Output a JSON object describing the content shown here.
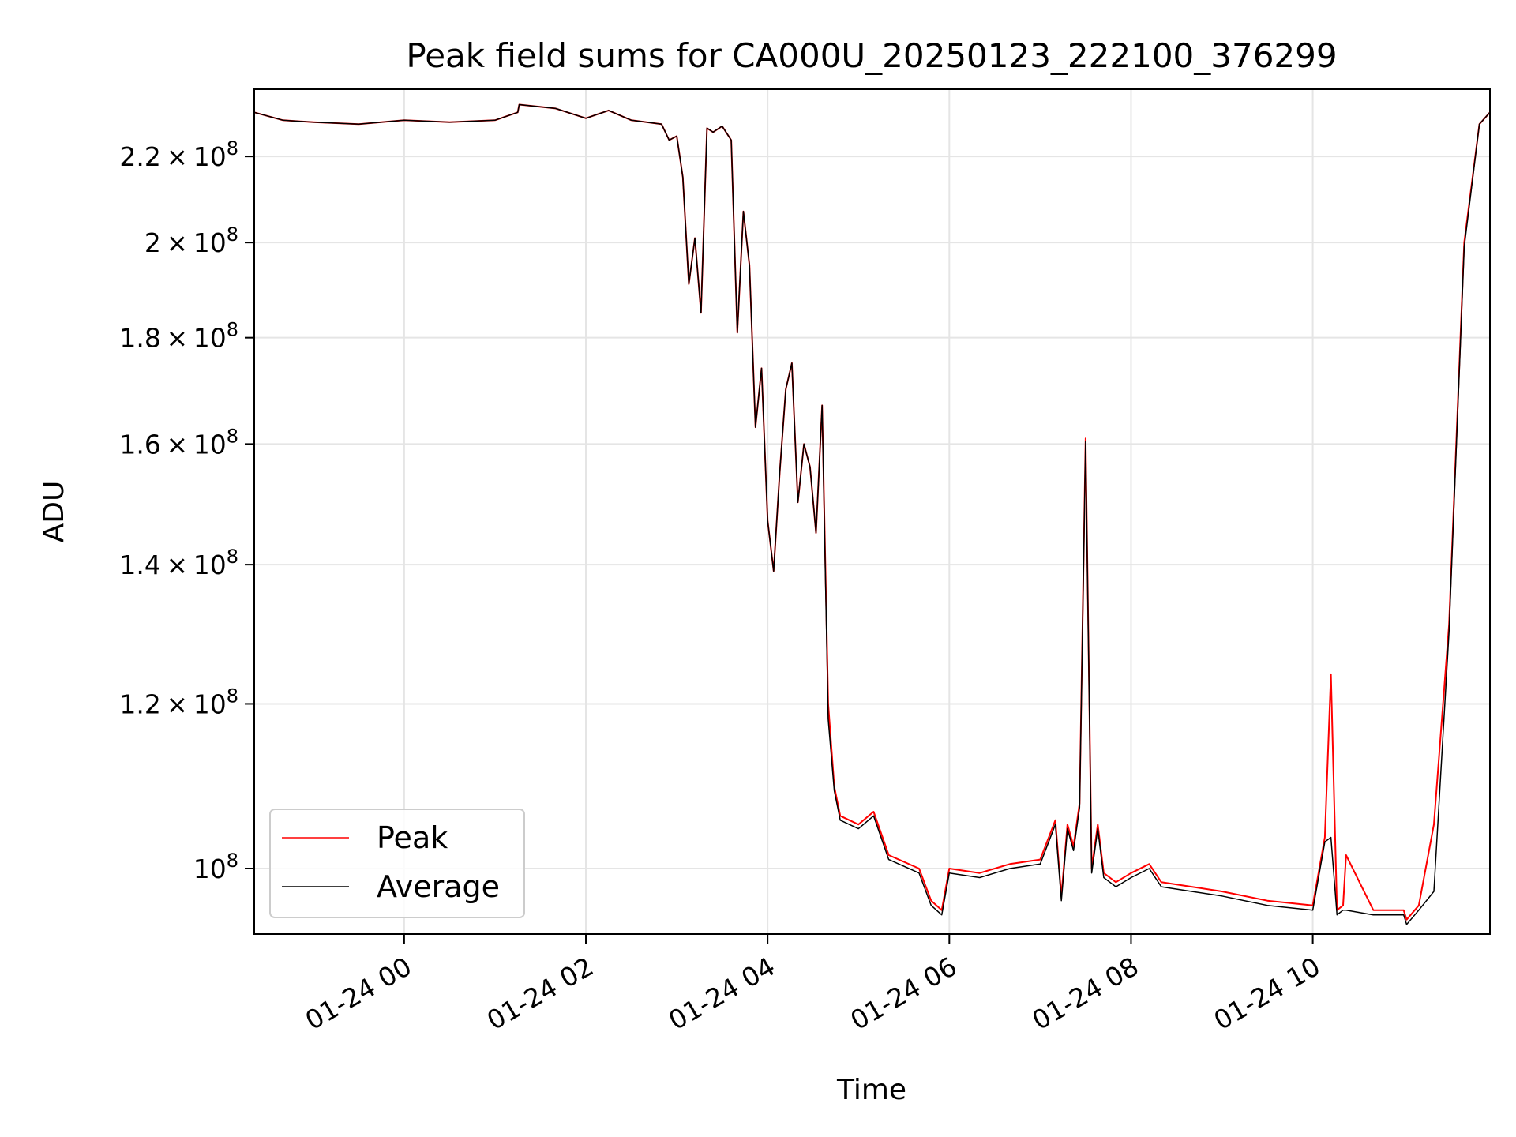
{
  "chart_data": {
    "type": "line",
    "title": "Peak field sums for CA000U_20250123_222100_376299",
    "xlabel": "Time",
    "ylabel": "ADU",
    "yscale": "log",
    "ylim": [
      93000000,
      237000000
    ],
    "xlim": [
      "01-23 22:21",
      "01-24 11:57"
    ],
    "grid": true,
    "legend_position": "lower-left",
    "x_ticks": [
      "01-24 00",
      "01-24 02",
      "01-24 04",
      "01-24 06",
      "01-24 08",
      "01-24 10"
    ],
    "x_tick_values": [
      "01-24 00:00",
      "01-24 02:00",
      "01-24 04:00",
      "01-24 06:00",
      "01-24 08:00",
      "01-24 10:00"
    ],
    "y_ticks": [
      {
        "value": 100000000,
        "mantissa": "",
        "exp": "8"
      },
      {
        "value": 120000000,
        "mantissa": "1.2",
        "exp": "8"
      },
      {
        "value": 140000000,
        "mantissa": "1.4",
        "exp": "8"
      },
      {
        "value": 160000000,
        "mantissa": "1.6",
        "exp": "8"
      },
      {
        "value": 180000000,
        "mantissa": "1.8",
        "exp": "8"
      },
      {
        "value": 200000000,
        "mantissa": "2",
        "exp": "8"
      },
      {
        "value": 220000000,
        "mantissa": "2.2",
        "exp": "8"
      }
    ],
    "series": [
      {
        "name": "Peak",
        "color": "#ff0000",
        "x": [
          "01-23 22:21",
          "01-23 22:40",
          "01-23 23:00",
          "01-23 23:30",
          "01-24 00:00",
          "01-24 00:30",
          "01-24 01:00",
          "01-24 01:15",
          "01-24 01:16",
          "01-24 01:40",
          "01-24 02:00",
          "01-24 02:15",
          "01-24 02:30",
          "01-24 02:50",
          "01-24 02:55",
          "01-24 03:00",
          "01-24 03:04",
          "01-24 03:08",
          "01-24 03:12",
          "01-24 03:16",
          "01-24 03:20",
          "01-24 03:24",
          "01-24 03:30",
          "01-24 03:36",
          "01-24 03:40",
          "01-24 03:44",
          "01-24 03:48",
          "01-24 03:52",
          "01-24 03:56",
          "01-24 04:00",
          "01-24 04:04",
          "01-24 04:08",
          "01-24 04:12",
          "01-24 04:16",
          "01-24 04:20",
          "01-24 04:24",
          "01-24 04:28",
          "01-24 04:32",
          "01-24 04:36",
          "01-24 04:40",
          "01-24 04:44",
          "01-24 04:48",
          "01-24 05:00",
          "01-24 05:10",
          "01-24 05:20",
          "01-24 05:40",
          "01-24 05:48",
          "01-24 05:55",
          "01-24 06:00",
          "01-24 06:20",
          "01-24 06:40",
          "01-24 07:00",
          "01-24 07:10",
          "01-24 07:14",
          "01-24 07:18",
          "01-24 07:22",
          "01-24 07:26",
          "01-24 07:30",
          "01-24 07:34",
          "01-24 07:38",
          "01-24 07:42",
          "01-24 07:46",
          "01-24 07:50",
          "01-24 08:00",
          "01-24 08:12",
          "01-24 08:20",
          "01-24 08:40",
          "01-24 09:00",
          "01-24 09:30",
          "01-24 10:00",
          "01-24 10:08",
          "01-24 10:12",
          "01-24 10:16",
          "01-24 10:20",
          "01-24 10:22",
          "01-24 10:40",
          "01-24 11:00",
          "01-24 11:02",
          "01-24 11:10",
          "01-24 11:20",
          "01-24 11:30",
          "01-24 11:40",
          "01-24 11:50",
          "01-24 11:57"
        ],
        "values": [
          231000000,
          229000000,
          228500000,
          228000000,
          229000000,
          228500000,
          229000000,
          231000000,
          233000000,
          232000000,
          229500000,
          231500000,
          229000000,
          228000000,
          224000000,
          225000000,
          215000000,
          191000000,
          201000000,
          185000000,
          227000000,
          226000000,
          227500000,
          224000000,
          181000000,
          207000000,
          195000000,
          163000000,
          174000000,
          147000000,
          139000000,
          155000000,
          170000000,
          175000000,
          150000000,
          160000000,
          156000000,
          145000000,
          167000000,
          120000000,
          109500000,
          106000000,
          105000000,
          106500000,
          101500000,
          100000000,
          96500000,
          95500000,
          100000000,
          99500000,
          100500000,
          101000000,
          105500000,
          97000000,
          105000000,
          102500000,
          107500000,
          161000000,
          100000000,
          105000000,
          99500000,
          99000000,
          98500000,
          99500000,
          100500000,
          98500000,
          98000000,
          97500000,
          96500000,
          96000000,
          103500000,
          124000000,
          95500000,
          96000000,
          101500000,
          95500000,
          95500000,
          94500000,
          96000000,
          105000000,
          131000000,
          200000000,
          228000000,
          231000000
        ]
      },
      {
        "name": "Average",
        "color": "#000000",
        "x": [
          "01-23 22:21",
          "01-23 22:40",
          "01-23 23:00",
          "01-23 23:30",
          "01-24 00:00",
          "01-24 00:30",
          "01-24 01:00",
          "01-24 01:15",
          "01-24 01:16",
          "01-24 01:40",
          "01-24 02:00",
          "01-24 02:15",
          "01-24 02:30",
          "01-24 02:50",
          "01-24 02:55",
          "01-24 03:00",
          "01-24 03:04",
          "01-24 03:08",
          "01-24 03:12",
          "01-24 03:16",
          "01-24 03:20",
          "01-24 03:24",
          "01-24 03:30",
          "01-24 03:36",
          "01-24 03:40",
          "01-24 03:44",
          "01-24 03:48",
          "01-24 03:52",
          "01-24 03:56",
          "01-24 04:00",
          "01-24 04:04",
          "01-24 04:08",
          "01-24 04:12",
          "01-24 04:16",
          "01-24 04:20",
          "01-24 04:24",
          "01-24 04:28",
          "01-24 04:32",
          "01-24 04:36",
          "01-24 04:40",
          "01-24 04:44",
          "01-24 04:48",
          "01-24 05:00",
          "01-24 05:10",
          "01-24 05:20",
          "01-24 05:40",
          "01-24 05:48",
          "01-24 05:55",
          "01-24 06:00",
          "01-24 06:20",
          "01-24 06:40",
          "01-24 07:00",
          "01-24 07:10",
          "01-24 07:14",
          "01-24 07:18",
          "01-24 07:22",
          "01-24 07:26",
          "01-24 07:30",
          "01-24 07:34",
          "01-24 07:38",
          "01-24 07:42",
          "01-24 07:46",
          "01-24 07:50",
          "01-24 08:00",
          "01-24 08:12",
          "01-24 08:20",
          "01-24 08:40",
          "01-24 09:00",
          "01-24 09:30",
          "01-24 10:00",
          "01-24 10:08",
          "01-24 10:12",
          "01-24 10:16",
          "01-24 10:20",
          "01-24 10:22",
          "01-24 10:40",
          "01-24 11:00",
          "01-24 11:02",
          "01-24 11:10",
          "01-24 11:20",
          "01-24 11:30",
          "01-24 11:40",
          "01-24 11:50",
          "01-24 11:57"
        ],
        "values": [
          231000000,
          229000000,
          228500000,
          228000000,
          229000000,
          228500000,
          229000000,
          231000000,
          233000000,
          232000000,
          229500000,
          231500000,
          229000000,
          228000000,
          224000000,
          225000000,
          215000000,
          191000000,
          201000000,
          185000000,
          227000000,
          226000000,
          227500000,
          224000000,
          181000000,
          207000000,
          195000000,
          163000000,
          174000000,
          147000000,
          139000000,
          155000000,
          170000000,
          175000000,
          150000000,
          160000000,
          156000000,
          145000000,
          167000000,
          118000000,
          109000000,
          105500000,
          104500000,
          106000000,
          101000000,
          99500000,
          96000000,
          95000000,
          99500000,
          99000000,
          100000000,
          100500000,
          105000000,
          96500000,
          104500000,
          102000000,
          107000000,
          160500000,
          99500000,
          104500000,
          99000000,
          98500000,
          98000000,
          99000000,
          100000000,
          98000000,
          97500000,
          97000000,
          96000000,
          95500000,
          103000000,
          103500000,
          95000000,
          95500000,
          95500000,
          95000000,
          95000000,
          94000000,
          95500000,
          97500000,
          130000000,
          199000000,
          228000000,
          231000000
        ]
      }
    ]
  }
}
